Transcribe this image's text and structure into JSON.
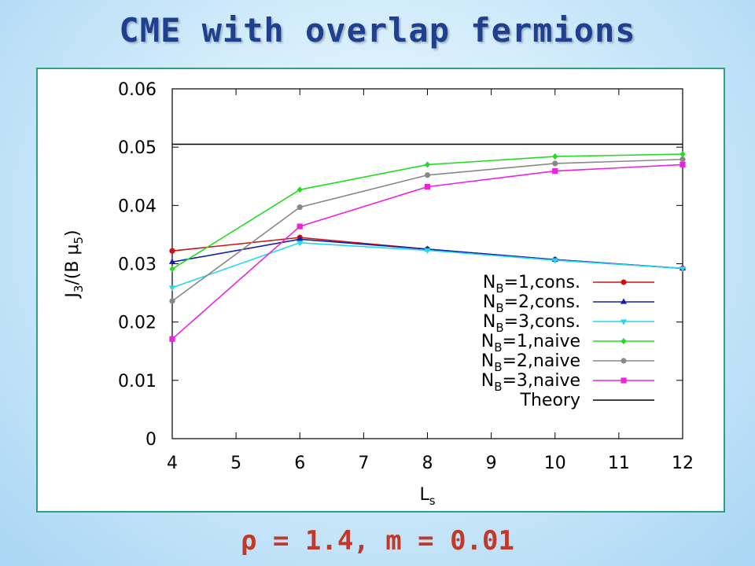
{
  "slide": {
    "title": "CME with overlap fermions",
    "subtitle": "ρ = 1.4, m = 0.01"
  },
  "chart_data": {
    "type": "line",
    "xlabel": "L_s",
    "ylabel": "J_3/(B μ_5)",
    "xlim": [
      4,
      12
    ],
    "ylim": [
      0,
      0.06
    ],
    "xticks": [
      4,
      5,
      6,
      7,
      8,
      9,
      10,
      11,
      12
    ],
    "yticks": [
      0,
      0.01,
      0.02,
      0.03,
      0.04,
      0.05,
      0.06
    ],
    "ytick_labels": [
      "0",
      "0.01",
      "0.02",
      "0.03",
      "0.04",
      "0.05",
      "0.06"
    ],
    "grid": false,
    "legend_position": "bottom-right",
    "x": [
      4,
      6,
      8,
      10,
      12
    ],
    "series": [
      {
        "name": "N_B=1,cons.",
        "color": "#d01010",
        "marker": "circle",
        "values": [
          0.0322,
          0.0345,
          0.0325,
          0.0307,
          0.0292
        ]
      },
      {
        "name": "N_B=2,cons.",
        "color": "#1020b0",
        "marker": "triangle",
        "values": [
          0.0303,
          0.0342,
          0.0325,
          0.0307,
          0.0292
        ]
      },
      {
        "name": "N_B=3,cons.",
        "color": "#20d8f0",
        "marker": "triangle-down",
        "values": [
          0.0259,
          0.0336,
          0.0323,
          0.0306,
          0.0292
        ]
      },
      {
        "name": "N_B=1,naive",
        "color": "#22dd22",
        "marker": "diamond",
        "values": [
          0.0291,
          0.0427,
          0.047,
          0.0484,
          0.0488
        ]
      },
      {
        "name": "N_B=2,naive",
        "color": "#888888",
        "marker": "circle",
        "values": [
          0.0236,
          0.0397,
          0.0452,
          0.0472,
          0.0479
        ]
      },
      {
        "name": "N_B=3,naive",
        "color": "#ee22dd",
        "marker": "square",
        "values": [
          0.0171,
          0.0364,
          0.0432,
          0.0459,
          0.047
        ]
      }
    ],
    "theory": {
      "name": "Theory",
      "color": "#000000",
      "value": 0.0505
    }
  }
}
